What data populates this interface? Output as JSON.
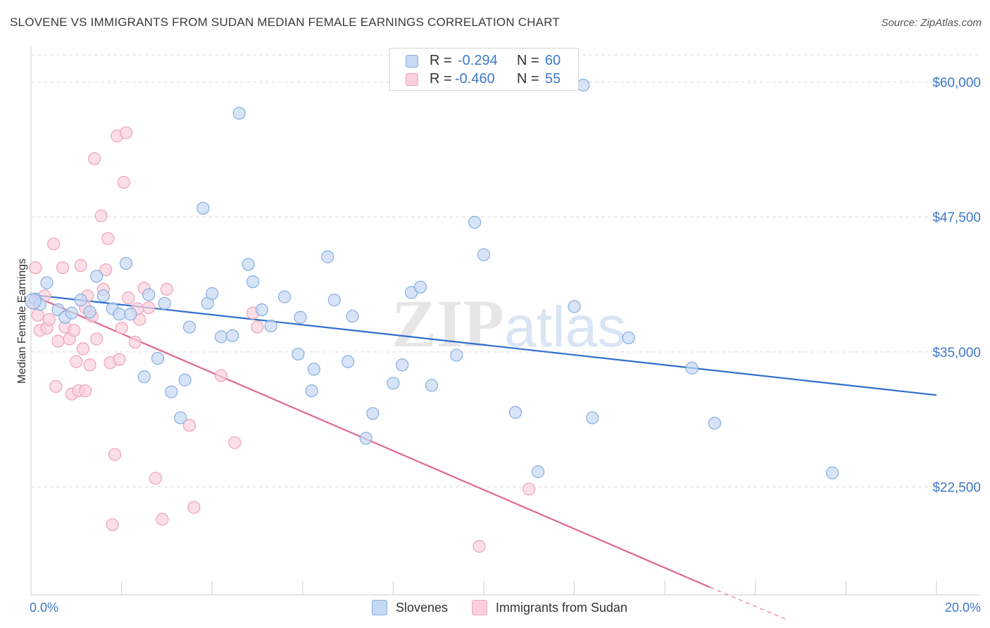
{
  "header": {
    "title": "SLOVENE VS IMMIGRANTS FROM SUDAN MEDIAN FEMALE EARNINGS CORRELATION CHART",
    "source": "Source: ZipAtlas.com"
  },
  "watermark": {
    "zip": "ZIP",
    "atlas": "atlas"
  },
  "legend": {
    "rows": [
      {
        "r_label": "R =",
        "r_value": "-0.294",
        "n_label": "N =",
        "n_value": "60"
      },
      {
        "r_label": "R =",
        "r_value": "-0.460",
        "n_label": "N =",
        "n_value": "55"
      }
    ]
  },
  "bottom_legend": {
    "series1": "Slovenes",
    "series2": "Immigrants from Sudan"
  },
  "colors": {
    "blue_fill": "#c6d9f3",
    "blue_stroke": "#86aee0",
    "blue_line": "#2f6fce",
    "pink_fill": "#f9d0dc",
    "pink_stroke": "#eea3b9",
    "pink_line": "#e06690",
    "grid": "#dcdcdc",
    "axis_text": "#3f78c9"
  },
  "chart_data": {
    "type": "scatter",
    "title": "SLOVENE VS IMMIGRANTS FROM SUDAN MEDIAN FEMALE EARNINGS CORRELATION CHART",
    "xlabel": "",
    "ylabel": "Median Female Earnings",
    "xlim": [
      0,
      20
    ],
    "ylim": [
      12500,
      62500
    ],
    "x_tick_labels": [
      "0.0%",
      "20.0%"
    ],
    "y_ticks": [
      60000,
      47500,
      35000,
      22500
    ],
    "y_tick_labels": [
      "$60,000",
      "$47,500",
      "$35,000",
      "$22,500"
    ],
    "grid": true,
    "legend_position": "top-center",
    "series": [
      {
        "name": "Slovenes",
        "r": -0.294,
        "n": 60,
        "trend": {
          "x": [
            0,
            20
          ],
          "y": [
            40300,
            31000
          ]
        },
        "points": [
          [
            0.1,
            39900
          ],
          [
            0.2,
            39400
          ],
          [
            0.35,
            41400
          ],
          [
            0.6,
            38900
          ],
          [
            0.75,
            38200
          ],
          [
            0.9,
            38600
          ],
          [
            1.1,
            39800
          ],
          [
            1.3,
            38700
          ],
          [
            1.45,
            42000
          ],
          [
            1.6,
            40200
          ],
          [
            1.8,
            39000
          ],
          [
            1.95,
            38500
          ],
          [
            2.1,
            43200
          ],
          [
            2.2,
            38500
          ],
          [
            2.5,
            32700
          ],
          [
            2.6,
            40300
          ],
          [
            2.8,
            34400
          ],
          [
            2.95,
            39500
          ],
          [
            3.1,
            31300
          ],
          [
            3.3,
            28900
          ],
          [
            3.4,
            32400
          ],
          [
            3.5,
            37300
          ],
          [
            3.8,
            48300
          ],
          [
            3.9,
            39500
          ],
          [
            4.0,
            40400
          ],
          [
            4.2,
            36400
          ],
          [
            4.45,
            36500
          ],
          [
            4.6,
            57100
          ],
          [
            4.8,
            43100
          ],
          [
            4.9,
            41500
          ],
          [
            5.1,
            38900
          ],
          [
            5.3,
            37400
          ],
          [
            5.6,
            40100
          ],
          [
            5.9,
            34800
          ],
          [
            5.95,
            38200
          ],
          [
            6.2,
            31400
          ],
          [
            6.25,
            33400
          ],
          [
            6.55,
            43800
          ],
          [
            6.7,
            39800
          ],
          [
            7.0,
            34100
          ],
          [
            7.1,
            38300
          ],
          [
            7.4,
            27000
          ],
          [
            7.55,
            29300
          ],
          [
            8.0,
            32100
          ],
          [
            8.2,
            33800
          ],
          [
            8.4,
            40500
          ],
          [
            8.6,
            41000
          ],
          [
            8.85,
            31900
          ],
          [
            9.4,
            34700
          ],
          [
            9.8,
            47000
          ],
          [
            10.0,
            44000
          ],
          [
            10.7,
            29400
          ],
          [
            11.2,
            23900
          ],
          [
            12.0,
            39200
          ],
          [
            12.4,
            28900
          ],
          [
            13.2,
            36300
          ],
          [
            14.6,
            33500
          ],
          [
            15.1,
            28400
          ],
          [
            17.7,
            23800
          ],
          [
            12.2,
            59700
          ]
        ]
      },
      {
        "name": "Immigrants from Sudan",
        "r": -0.46,
        "n": 55,
        "trend": {
          "x": [
            0,
            15
          ],
          "y": [
            40300,
            13200
          ]
        },
        "trend_dashed": {
          "x": [
            15,
            16.7
          ],
          "y": [
            13200,
            10200
          ]
        },
        "points": [
          [
            0.05,
            39500
          ],
          [
            0.1,
            42800
          ],
          [
            0.15,
            38400
          ],
          [
            0.2,
            37000
          ],
          [
            0.3,
            40200
          ],
          [
            0.35,
            37200
          ],
          [
            0.4,
            38000
          ],
          [
            0.5,
            45000
          ],
          [
            0.55,
            31800
          ],
          [
            0.6,
            36000
          ],
          [
            0.7,
            42800
          ],
          [
            0.75,
            37300
          ],
          [
            0.85,
            36200
          ],
          [
            0.9,
            31100
          ],
          [
            0.95,
            37000
          ],
          [
            1.0,
            34100
          ],
          [
            1.05,
            31400
          ],
          [
            1.1,
            43000
          ],
          [
            1.15,
            35300
          ],
          [
            1.2,
            31400
          ],
          [
            1.25,
            40200
          ],
          [
            1.3,
            33800
          ],
          [
            1.35,
            38300
          ],
          [
            1.4,
            52900
          ],
          [
            1.45,
            36200
          ],
          [
            1.55,
            47600
          ],
          [
            1.6,
            40800
          ],
          [
            1.65,
            42600
          ],
          [
            1.7,
            45500
          ],
          [
            1.75,
            34000
          ],
          [
            1.8,
            19000
          ],
          [
            1.85,
            25500
          ],
          [
            1.9,
            55000
          ],
          [
            1.95,
            34300
          ],
          [
            2.0,
            37200
          ],
          [
            2.05,
            50700
          ],
          [
            2.1,
            55300
          ],
          [
            2.15,
            40000
          ],
          [
            2.3,
            35900
          ],
          [
            2.4,
            38000
          ],
          [
            2.5,
            40900
          ],
          [
            2.6,
            39100
          ],
          [
            2.75,
            23300
          ],
          [
            2.9,
            19500
          ],
          [
            3.0,
            40800
          ],
          [
            3.5,
            28200
          ],
          [
            3.6,
            20600
          ],
          [
            4.2,
            32800
          ],
          [
            4.5,
            26600
          ],
          [
            4.9,
            38600
          ],
          [
            5.0,
            37300
          ],
          [
            11.0,
            22300
          ],
          [
            9.9,
            17000
          ],
          [
            2.35,
            39000
          ],
          [
            1.2,
            39100
          ]
        ]
      }
    ]
  }
}
